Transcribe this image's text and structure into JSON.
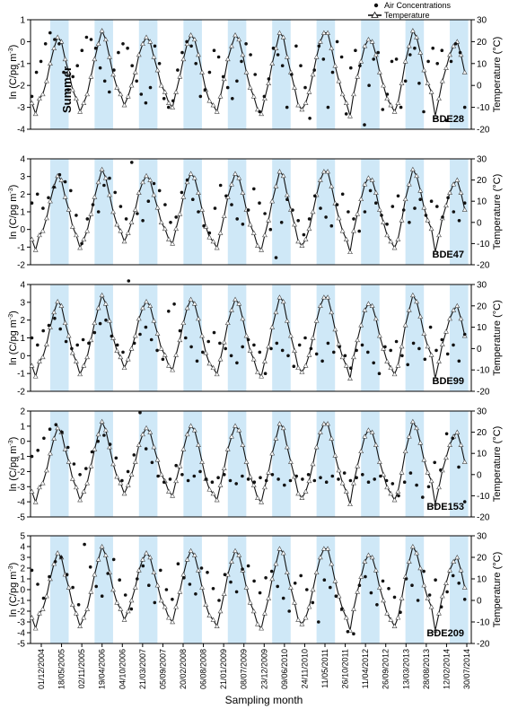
{
  "figure": {
    "legend": {
      "air": "Air Concentrations",
      "temp": "Temperature"
    },
    "season_label": "Summer",
    "xlabel": "Sampling month",
    "ylabel_left": "ln (C/pg m",
    "ylabel_left_sup": "-3",
    "ylabel_left_end": ")",
    "ylabel_right": "Temperature (°C)",
    "colors": {
      "summer_band": "#cfe8f7",
      "temperature_line": "#111111",
      "temperature_marker_fill": "#ffffff",
      "air_marker": "#111111"
    }
  },
  "chart_data": {
    "type": "scatter",
    "xtick_labels": [
      "01/12/2004",
      "18/05/2005",
      "02/11/2005",
      "19/04/2006",
      "04/10/2006",
      "21/03/2007",
      "05/09/2007",
      "20/02/2008",
      "06/08/2008",
      "21/01/2009",
      "08/07/2009",
      "23/12/2009",
      "09/06/2010",
      "24/11/2010",
      "11/05/2011",
      "26/10/2011",
      "11/04/2012",
      "26/09/2012",
      "13/03/2013",
      "28/08/2013",
      "12/02/2014",
      "30/07/2014"
    ],
    "summer_periods": [
      [
        "2005-05-01",
        "2005-09-30"
      ],
      [
        "2006-05-01",
        "2006-09-30"
      ],
      [
        "2007-05-01",
        "2007-09-30"
      ],
      [
        "2008-05-01",
        "2008-09-30"
      ],
      [
        "2009-05-01",
        "2009-09-30"
      ],
      [
        "2010-05-01",
        "2010-09-30"
      ],
      [
        "2011-05-01",
        "2011-09-30"
      ],
      [
        "2012-05-01",
        "2012-09-30"
      ],
      [
        "2013-05-01",
        "2013-09-30"
      ],
      [
        "2014-05-01",
        "2014-09-30"
      ]
    ],
    "temperature_right_ylim": [
      -20,
      30
    ],
    "temperature_right_ticks": [
      -20,
      -10,
      0,
      10,
      20,
      30
    ],
    "temperature_series": {
      "name": "Temperature",
      "x": [
        "2004-12-01",
        "2005-01-01",
        "2005-02-01",
        "2005-03-01",
        "2005-04-01",
        "2005-05-01",
        "2005-06-01",
        "2005-07-01",
        "2005-08-01",
        "2005-09-01",
        "2005-10-01",
        "2005-11-01",
        "2005-12-01",
        "2006-01-01",
        "2006-02-01",
        "2006-03-01",
        "2006-04-01",
        "2006-05-01",
        "2006-06-01",
        "2006-07-01",
        "2006-08-01",
        "2006-09-01",
        "2006-10-01",
        "2006-11-01",
        "2006-12-01",
        "2007-01-01",
        "2007-02-01",
        "2007-03-01",
        "2007-04-01",
        "2007-05-01",
        "2007-06-01",
        "2007-07-01",
        "2007-08-01",
        "2007-09-01",
        "2007-10-01",
        "2007-11-01",
        "2007-12-01",
        "2008-01-01",
        "2008-02-01",
        "2008-03-01",
        "2008-04-01",
        "2008-05-01",
        "2008-06-01",
        "2008-07-01",
        "2008-08-01",
        "2008-09-01",
        "2008-10-01",
        "2008-11-01",
        "2008-12-01",
        "2009-01-01",
        "2009-02-01",
        "2009-03-01",
        "2009-04-01",
        "2009-05-01",
        "2009-06-01",
        "2009-07-01",
        "2009-08-01",
        "2009-09-01",
        "2009-10-01",
        "2009-11-01",
        "2009-12-01",
        "2010-01-01",
        "2010-02-01",
        "2010-03-01",
        "2010-04-01",
        "2010-05-01",
        "2010-06-01",
        "2010-07-01",
        "2010-08-01",
        "2010-09-01",
        "2010-10-01",
        "2010-11-01",
        "2010-12-01",
        "2011-01-01",
        "2011-02-01",
        "2011-03-01",
        "2011-04-01",
        "2011-05-01",
        "2011-06-01",
        "2011-07-01",
        "2011-08-01",
        "2011-09-01",
        "2011-10-01",
        "2011-11-01",
        "2011-12-01",
        "2012-01-01",
        "2012-02-01",
        "2012-03-01",
        "2012-04-01",
        "2012-05-01",
        "2012-06-01",
        "2012-07-01",
        "2012-08-01",
        "2012-09-01",
        "2012-10-01",
        "2012-11-01",
        "2012-12-01",
        "2013-01-01",
        "2013-02-01",
        "2013-03-01",
        "2013-04-01",
        "2013-05-01",
        "2013-06-01",
        "2013-07-01",
        "2013-08-01",
        "2013-09-01",
        "2013-10-01",
        "2013-11-01",
        "2013-12-01",
        "2014-01-01",
        "2014-02-01",
        "2014-03-01",
        "2014-04-01",
        "2014-05-01",
        "2014-06-01",
        "2014-07-01",
        "2014-08-01",
        "2014-09-01"
      ],
      "y": [
        -8,
        -13,
        -6,
        -4,
        2,
        10,
        17,
        22,
        20,
        12,
        6,
        -2,
        -6,
        -12,
        -8,
        -4,
        4,
        12,
        19,
        25,
        21,
        13,
        5,
        -1,
        -4,
        -9,
        -5,
        0,
        6,
        14,
        19,
        22,
        20,
        13,
        7,
        0,
        -3,
        -8,
        -10,
        -3,
        4,
        12,
        19,
        23,
        21,
        14,
        6,
        -2,
        -7,
        -9,
        -12,
        -5,
        3,
        12,
        18,
        23,
        21,
        14,
        6,
        -1,
        -5,
        -11,
        -13,
        -6,
        1,
        10,
        17,
        24,
        22,
        13,
        6,
        -1,
        -9,
        -11,
        -8,
        -3,
        5,
        13,
        20,
        24,
        24,
        17,
        9,
        2,
        -4,
        -8,
        -14,
        -4,
        4,
        11,
        18,
        21,
        20,
        14,
        6,
        0,
        -6,
        -9,
        -12,
        -8,
        1,
        11,
        18,
        25,
        22,
        15,
        7,
        1,
        -3,
        -14,
        -6,
        2,
        8,
        14,
        18,
        20,
        14,
        6
      ],
      "marker": "open-triangle"
    },
    "panels": [
      {
        "name": "BDE28",
        "ylim": [
          -4,
          1
        ],
        "yticks": [
          -4,
          -3,
          -2,
          -1,
          0,
          1
        ],
        "air_values": [
          -2.5,
          -1.4,
          -0.9,
          -0.1,
          0.4,
          0.1,
          -0.1,
          -1.4,
          -2.2,
          -1.6,
          -1.1,
          -0.4,
          0.2,
          0.1,
          -0.3,
          -1.2,
          -1.8,
          -2.3,
          -1.3,
          -0.5,
          -0.1,
          -0.3,
          -1.1,
          -1.8,
          -2.4,
          -2.8,
          -2.1,
          -0.2,
          -1.0,
          -2.6,
          -3.0,
          -2.7,
          -1.3,
          -0.5,
          0.0,
          -0.2,
          -1.0,
          -2.5,
          -2.2,
          -1.4,
          -0.4,
          -0.7,
          -1.6,
          -2.1,
          -2.6,
          -1.8,
          -0.9,
          -0.1,
          -0.6,
          -1.5,
          -3.2,
          -2.5,
          -1.7,
          -0.3,
          -0.6,
          -1.1,
          -3.0,
          -1.5,
          -0.2,
          -1.1,
          -2.1,
          -3.5,
          -1.3,
          -0.2,
          -0.8,
          -3.0,
          -1.4,
          0.0,
          -0.7,
          -3.3,
          -1.2,
          -0.4,
          -1.1,
          -3.8,
          -2.0,
          -0.8,
          -0.5,
          -3.1,
          -2.4,
          -0.9,
          -0.8,
          -3.0,
          -1.8,
          -0.6,
          -0.3,
          -1.9,
          -3.2,
          -0.9,
          -0.3,
          -1.0,
          -0.4,
          -3.6,
          -0.9,
          -0.1,
          -0.5,
          -3.0
        ]
      },
      {
        "name": "BDE47",
        "ylim": [
          -2,
          4
        ],
        "yticks": [
          -2,
          -1,
          0,
          1,
          2,
          3,
          4
        ],
        "air_values": [
          1.5,
          2.0,
          1.2,
          1.8,
          2.4,
          3.1,
          2.7,
          2.2,
          0.8,
          -0.8,
          0.6,
          1.4,
          1.0,
          2.5,
          2.9,
          2.1,
          1.3,
          0.6,
          3.8,
          0.9,
          0.5,
          1.6,
          2.6,
          2.2,
          1.4,
          0.4,
          0.7,
          2.1,
          2.8,
          1.7,
          1.0,
          0.2,
          -0.2,
          1.2,
          2.5,
          1.9,
          1.4,
          0.6,
          0.3,
          1.1,
          2.3,
          1.5,
          0.9,
          0.0,
          -1.6,
          0.4,
          1.7,
          1.1,
          0.5,
          -0.3,
          0.6,
          1.9,
          1.2,
          0.7,
          0.2,
          1.4,
          2.0,
          1.0,
          0.6,
          -0.1,
          1.0,
          2.2,
          1.5,
          0.8,
          0.3,
          1.3,
          1.9,
          1.1,
          0.4,
          1.2,
          1.7,
          0.8,
          1.6,
          1.3,
          0.7,
          1.8,
          1.0,
          0.5,
          1.5
        ]
      },
      {
        "name": "BDE99",
        "ylim": [
          -2,
          4
        ],
        "yticks": [
          -2,
          -1,
          0,
          1,
          2,
          3,
          4
        ],
        "air_values": [
          1.0,
          0.6,
          1.4,
          1.7,
          2.1,
          1.5,
          0.8,
          0.4,
          0.6,
          0.9,
          0.7,
          1.3,
          1.8,
          2.0,
          1.1,
          0.6,
          0.2,
          4.2,
          0.7,
          1.2,
          1.6,
          0.9,
          0.3,
          -0.2,
          2.5,
          2.9,
          1.4,
          1.0,
          0.5,
          -0.3,
          0.2,
          0.8,
          1.3,
          0.7,
          0.4,
          0.0,
          -0.4,
          0.5,
          0.9,
          0.6,
          0.2,
          -1.0,
          0.4,
          0.7,
          0.3,
          0.0,
          -0.6,
          0.6,
          1.0,
          0.4,
          0.1,
          -0.3,
          0.7,
          0.2,
          0.5,
          0.0,
          -0.7,
          0.3,
          0.6,
          0.2,
          -0.4,
          -1.0,
          0.5,
          0.3,
          0.8,
          0.0,
          -0.5,
          0.7,
          0.4,
          -0.2,
          1.6,
          0.3,
          0.9,
          0.1,
          0.6,
          -0.3,
          1.2
        ]
      },
      {
        "name": "BDE153",
        "ylim": [
          -5,
          2
        ],
        "yticks": [
          -5,
          -4,
          -3,
          -2,
          -1,
          0,
          1,
          2
        ],
        "air_values": [
          -1.0,
          -0.6,
          0.2,
          0.8,
          1.1,
          0.6,
          -0.4,
          -1.5,
          -2.2,
          -1.8,
          -0.7,
          0.0,
          0.4,
          -0.2,
          -1.1,
          -2.6,
          -2.0,
          -0.9,
          1.9,
          -0.5,
          -1.4,
          -2.3,
          -2.7,
          -2.5,
          -1.6,
          -2.2,
          -2.6,
          -2.3,
          -2.0,
          -2.5,
          -2.7,
          -2.4,
          -2.2,
          -2.6,
          -2.8,
          -2.3,
          -2.5,
          -2.7,
          -2.4,
          -2.6,
          -2.2,
          -2.5,
          -2.9,
          -2.6,
          -2.3,
          -2.5,
          -2.2,
          -2.6,
          -2.4,
          -2.7,
          -2.3,
          -2.5,
          -2.1,
          -2.6,
          -2.4,
          -2.2,
          -2.7,
          -2.5,
          -2.3,
          -2.6,
          -2.8,
          -3.6,
          -2.7,
          -2.1,
          -2.9,
          -3.7,
          -3.0,
          -1.4,
          -1.9,
          0.5,
          0.2,
          -1.7,
          -4.0
        ]
      },
      {
        "name": "BDE209",
        "ylim": [
          -5,
          5
        ],
        "yticks": [
          -5,
          -4,
          -3,
          -2,
          -1,
          0,
          1,
          2,
          3,
          4,
          5
        ],
        "air_values": [
          1.8,
          0.5,
          -0.8,
          1.2,
          2.6,
          3.0,
          1.4,
          0.2,
          -1.4,
          4.2,
          2.1,
          0.3,
          -0.6,
          1.5,
          2.8,
          0.9,
          -0.5,
          -1.8,
          1.0,
          2.2,
          0.4,
          -1.2,
          1.8,
          0.0,
          -0.9,
          2.4,
          1.1,
          0.5,
          -0.4,
          2.0,
          1.6,
          0.1,
          -1.0,
          1.4,
          0.7,
          -0.2,
          1.9,
          2.2,
          0.8,
          -0.3,
          1.1,
          1.7,
          0.3,
          -0.8,
          -2.0,
          0.6,
          1.3,
          0.0,
          -1.2,
          -3.0,
          0.9,
          0.2,
          -0.6,
          -1.8,
          -3.9,
          -4.1,
          0.4,
          1.2,
          -0.3,
          -1.4,
          0.8,
          0.1,
          -0.7,
          -2.1,
          1.0,
          0.4,
          -1.0,
          1.7,
          -0.5,
          0.9,
          -1.6,
          -0.2,
          1.3,
          0.6,
          -0.9
        ]
      }
    ]
  }
}
